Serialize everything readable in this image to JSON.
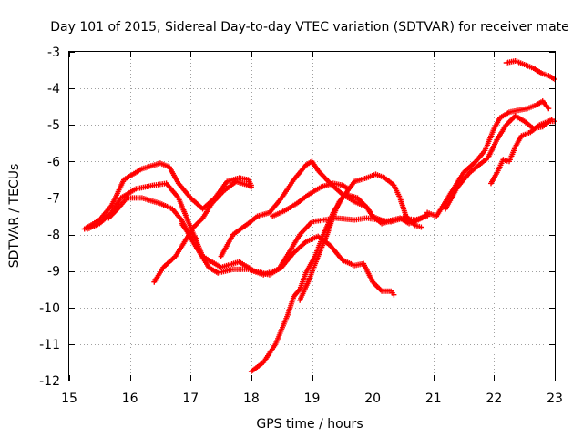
{
  "chart_data": {
    "type": "scatter",
    "title": "Day 101 of 2015, Sidereal Day-to-day VTEC variation (SDTVAR) for receiver mate",
    "xlabel": "GPS time / hours",
    "ylabel": "SDTVAR / TECUs",
    "xlim": [
      15,
      23
    ],
    "ylim": [
      -12,
      -3
    ],
    "xticks": [
      15,
      16,
      17,
      18,
      19,
      20,
      21,
      22,
      23
    ],
    "yticks": [
      -12,
      -11,
      -10,
      -9,
      -8,
      -7,
      -6,
      -5,
      -4,
      -3
    ],
    "grid": true,
    "marker": "plus",
    "color": "#ff0000",
    "series": [
      {
        "name": "trace-a",
        "points": [
          [
            15.25,
            -7.85
          ],
          [
            15.5,
            -7.6
          ],
          [
            15.7,
            -7.2
          ],
          [
            15.9,
            -6.5
          ],
          [
            16.2,
            -6.2
          ],
          [
            16.5,
            -6.05
          ],
          [
            16.65,
            -6.15
          ],
          [
            16.8,
            -6.6
          ],
          [
            17.0,
            -7.0
          ],
          [
            17.2,
            -7.3
          ],
          [
            17.4,
            -7.0
          ],
          [
            17.6,
            -6.55
          ],
          [
            17.8,
            -6.45
          ],
          [
            17.95,
            -6.5
          ],
          [
            18.0,
            -6.65
          ]
        ]
      },
      {
        "name": "trace-b",
        "points": [
          [
            15.3,
            -7.85
          ],
          [
            15.5,
            -7.7
          ],
          [
            15.7,
            -7.4
          ],
          [
            15.85,
            -7.0
          ],
          [
            16.1,
            -6.75
          ],
          [
            16.4,
            -6.65
          ],
          [
            16.6,
            -6.6
          ],
          [
            16.8,
            -7.0
          ],
          [
            17.0,
            -7.8
          ],
          [
            17.2,
            -8.6
          ],
          [
            17.5,
            -8.9
          ],
          [
            17.8,
            -8.75
          ],
          [
            18.05,
            -9.0
          ],
          [
            18.3,
            -9.1
          ],
          [
            18.5,
            -8.9
          ],
          [
            18.7,
            -8.5
          ],
          [
            18.9,
            -8.2
          ],
          [
            19.1,
            -8.05
          ],
          [
            19.3,
            -8.3
          ],
          [
            19.5,
            -8.7
          ],
          [
            19.7,
            -8.85
          ],
          [
            19.85,
            -8.8
          ],
          [
            20.0,
            -9.3
          ],
          [
            20.15,
            -9.55
          ],
          [
            20.3,
            -9.55
          ],
          [
            20.35,
            -9.65
          ]
        ]
      },
      {
        "name": "trace-c",
        "points": [
          [
            15.65,
            -7.55
          ],
          [
            15.8,
            -7.3
          ],
          [
            15.95,
            -7.0
          ],
          [
            16.2,
            -7.0
          ],
          [
            16.5,
            -7.15
          ],
          [
            16.7,
            -7.3
          ],
          [
            16.85,
            -7.6
          ],
          [
            17.0,
            -8.1
          ],
          [
            17.15,
            -8.5
          ],
          [
            17.3,
            -8.9
          ],
          [
            17.45,
            -9.05
          ],
          [
            17.7,
            -8.95
          ],
          [
            17.95,
            -8.95
          ],
          [
            18.2,
            -9.1
          ],
          [
            18.45,
            -8.95
          ],
          [
            18.6,
            -8.55
          ],
          [
            18.8,
            -8.0
          ],
          [
            19.0,
            -7.65
          ],
          [
            19.2,
            -7.6
          ],
          [
            19.4,
            -7.55
          ],
          [
            19.7,
            -7.6
          ],
          [
            19.9,
            -7.55
          ],
          [
            20.1,
            -7.6
          ],
          [
            20.3,
            -7.65
          ],
          [
            20.5,
            -7.55
          ],
          [
            20.7,
            -7.6
          ],
          [
            20.9,
            -7.5
          ]
        ]
      },
      {
        "name": "trace-d",
        "points": [
          [
            16.4,
            -9.3
          ],
          [
            16.55,
            -8.9
          ],
          [
            16.75,
            -8.6
          ],
          [
            16.9,
            -8.2
          ],
          [
            17.05,
            -7.8
          ],
          [
            17.2,
            -7.55
          ],
          [
            17.35,
            -7.15
          ],
          [
            17.55,
            -6.8
          ],
          [
            17.75,
            -6.55
          ],
          [
            17.95,
            -6.65
          ],
          [
            18.0,
            -6.7
          ]
        ]
      },
      {
        "name": "trace-e",
        "points": [
          [
            16.85,
            -7.7
          ],
          [
            17.0,
            -8.05
          ],
          [
            17.1,
            -8.1
          ]
        ]
      },
      {
        "name": "trace-f",
        "points": [
          [
            17.5,
            -8.6
          ],
          [
            17.7,
            -8.0
          ],
          [
            17.95,
            -7.7
          ],
          [
            18.1,
            -7.5
          ],
          [
            18.3,
            -7.4
          ],
          [
            18.5,
            -7.0
          ],
          [
            18.7,
            -6.5
          ],
          [
            18.9,
            -6.1
          ],
          [
            19.0,
            -6.0
          ],
          [
            19.1,
            -6.25
          ],
          [
            19.3,
            -6.6
          ],
          [
            19.5,
            -6.9
          ],
          [
            19.7,
            -7.1
          ],
          [
            19.9,
            -7.25
          ],
          [
            20.0,
            -7.5
          ],
          [
            20.2,
            -7.65
          ],
          [
            20.45,
            -7.55
          ],
          [
            20.6,
            -7.7
          ],
          [
            20.75,
            -7.6
          ],
          [
            20.9,
            -7.45
          ]
        ]
      },
      {
        "name": "trace-g",
        "points": [
          [
            18.0,
            -11.75
          ],
          [
            18.2,
            -11.5
          ],
          [
            18.4,
            -11.0
          ],
          [
            18.5,
            -10.6
          ],
          [
            18.6,
            -10.2
          ],
          [
            18.7,
            -9.7
          ],
          [
            18.8,
            -9.5
          ],
          [
            18.9,
            -9.05
          ],
          [
            19.05,
            -8.6
          ],
          [
            19.2,
            -7.95
          ],
          [
            19.35,
            -7.4
          ],
          [
            19.5,
            -7.0
          ],
          [
            19.7,
            -6.55
          ],
          [
            19.9,
            -6.45
          ],
          [
            20.05,
            -6.35
          ],
          [
            20.2,
            -6.45
          ],
          [
            20.35,
            -6.65
          ],
          [
            20.45,
            -7.0
          ],
          [
            20.55,
            -7.5
          ],
          [
            20.7,
            -7.75
          ],
          [
            20.8,
            -7.8
          ]
        ]
      },
      {
        "name": "trace-h",
        "points": [
          [
            18.8,
            -9.8
          ],
          [
            18.95,
            -9.25
          ],
          [
            19.1,
            -8.6
          ],
          [
            19.25,
            -8.0
          ],
          [
            19.35,
            -7.5
          ],
          [
            19.45,
            -7.1
          ],
          [
            19.55,
            -6.9
          ],
          [
            19.75,
            -7.0
          ],
          [
            19.9,
            -7.25
          ],
          [
            20.0,
            -7.5
          ],
          [
            20.15,
            -7.7
          ],
          [
            20.35,
            -7.6
          ]
        ]
      },
      {
        "name": "trace-i",
        "points": [
          [
            18.35,
            -7.5
          ],
          [
            18.55,
            -7.35
          ],
          [
            18.75,
            -7.15
          ],
          [
            18.95,
            -6.9
          ],
          [
            19.15,
            -6.7
          ],
          [
            19.35,
            -6.6
          ],
          [
            19.5,
            -6.65
          ],
          [
            19.6,
            -6.75
          ]
        ]
      },
      {
        "name": "trace-j",
        "points": [
          [
            20.9,
            -7.4
          ],
          [
            21.05,
            -7.5
          ],
          [
            21.2,
            -7.1
          ],
          [
            21.35,
            -6.7
          ],
          [
            21.5,
            -6.3
          ],
          [
            21.7,
            -6.0
          ],
          [
            21.85,
            -5.7
          ],
          [
            22.0,
            -5.1
          ],
          [
            22.1,
            -4.8
          ],
          [
            22.25,
            -4.65
          ],
          [
            22.4,
            -4.6
          ],
          [
            22.55,
            -4.55
          ],
          [
            22.7,
            -4.45
          ],
          [
            22.8,
            -4.35
          ],
          [
            22.9,
            -4.55
          ]
        ]
      },
      {
        "name": "trace-k",
        "points": [
          [
            21.2,
            -7.3
          ],
          [
            21.4,
            -6.7
          ],
          [
            21.6,
            -6.3
          ],
          [
            21.75,
            -6.1
          ],
          [
            21.9,
            -5.9
          ],
          [
            22.05,
            -5.4
          ],
          [
            22.2,
            -5.0
          ],
          [
            22.35,
            -4.75
          ],
          [
            22.5,
            -4.9
          ],
          [
            22.65,
            -5.1
          ],
          [
            22.8,
            -5.05
          ],
          [
            22.95,
            -4.85
          ]
        ]
      },
      {
        "name": "trace-l",
        "points": [
          [
            21.95,
            -6.6
          ],
          [
            22.05,
            -6.3
          ],
          [
            22.15,
            -5.95
          ],
          [
            22.25,
            -6.0
          ],
          [
            22.35,
            -5.6
          ],
          [
            22.45,
            -5.3
          ],
          [
            22.6,
            -5.2
          ],
          [
            22.75,
            -5.0
          ],
          [
            22.9,
            -4.9
          ],
          [
            23.0,
            -4.9
          ]
        ]
      },
      {
        "name": "trace-m",
        "points": [
          [
            22.2,
            -3.3
          ],
          [
            22.35,
            -3.25
          ],
          [
            22.5,
            -3.35
          ],
          [
            22.65,
            -3.45
          ],
          [
            22.8,
            -3.6
          ],
          [
            22.9,
            -3.65
          ],
          [
            23.0,
            -3.75
          ]
        ]
      }
    ],
    "xtick_labels": [
      "15",
      "16",
      "17",
      "18",
      "19",
      "20",
      "21",
      "22",
      "23"
    ],
    "ytick_labels": [
      "-12",
      "-11",
      "-10",
      "-9",
      "-8",
      "-7",
      "-6",
      "-5",
      "-4",
      "-3"
    ]
  }
}
